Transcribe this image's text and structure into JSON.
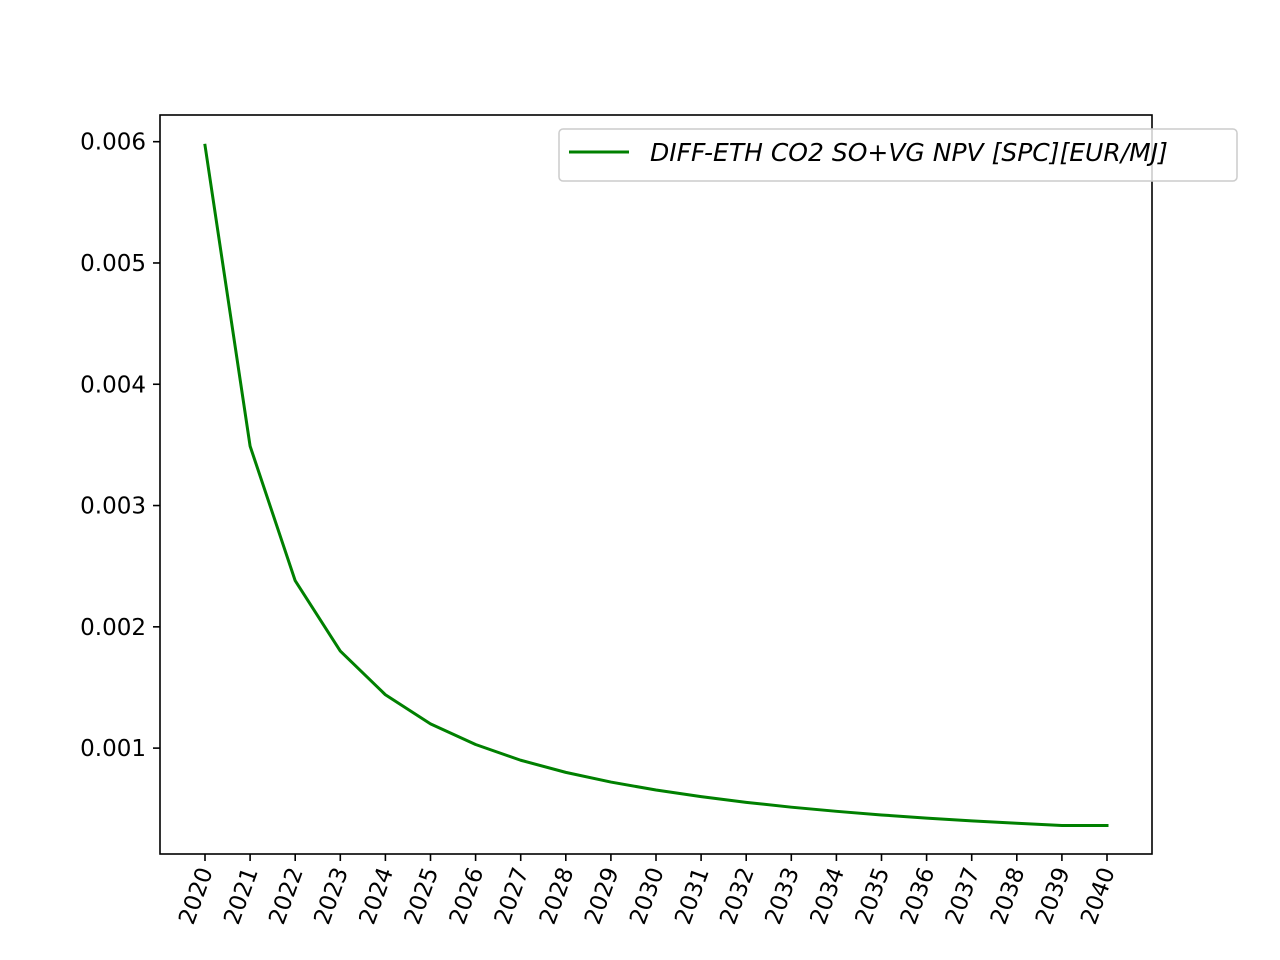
{
  "chart_data": {
    "type": "line",
    "title": "",
    "xlabel": "",
    "ylabel": "",
    "x": [
      "2020",
      "2021",
      "2022",
      "2023",
      "2024",
      "2025",
      "2026",
      "2027",
      "2028",
      "2029",
      "2030",
      "2031",
      "2032",
      "2033",
      "2034",
      "2035",
      "2036",
      "2037",
      "2038",
      "2039",
      "2040"
    ],
    "series": [
      {
        "name": "DIFF-ETH CO2 SO+VG NPV [SPC][EUR/MJ]",
        "color": "#008000",
        "values": [
          0.00597,
          0.00349,
          0.00238,
          0.0018,
          0.00144,
          0.0012,
          0.00103,
          0.0009,
          0.0008,
          0.00072,
          0.000655,
          0.0006,
          0.000553,
          0.000513,
          0.000479,
          0.000449,
          0.000423,
          0.0004,
          0.00038,
          0.000362,
          0.000362
        ]
      }
    ],
    "yticks": [
      "0.001",
      "0.002",
      "0.003",
      "0.004",
      "0.005",
      "0.006"
    ],
    "ytick_values": [
      0.001,
      0.002,
      0.003,
      0.004,
      0.005,
      0.006
    ],
    "ylim": [
      0.000127,
      0.00622
    ],
    "xtick_rotation": "70deg",
    "legend": "top-right",
    "grid": false,
    "colors": {
      "axis": "#000000",
      "background": "#ffffff",
      "legend_border": "#cccccc"
    }
  }
}
